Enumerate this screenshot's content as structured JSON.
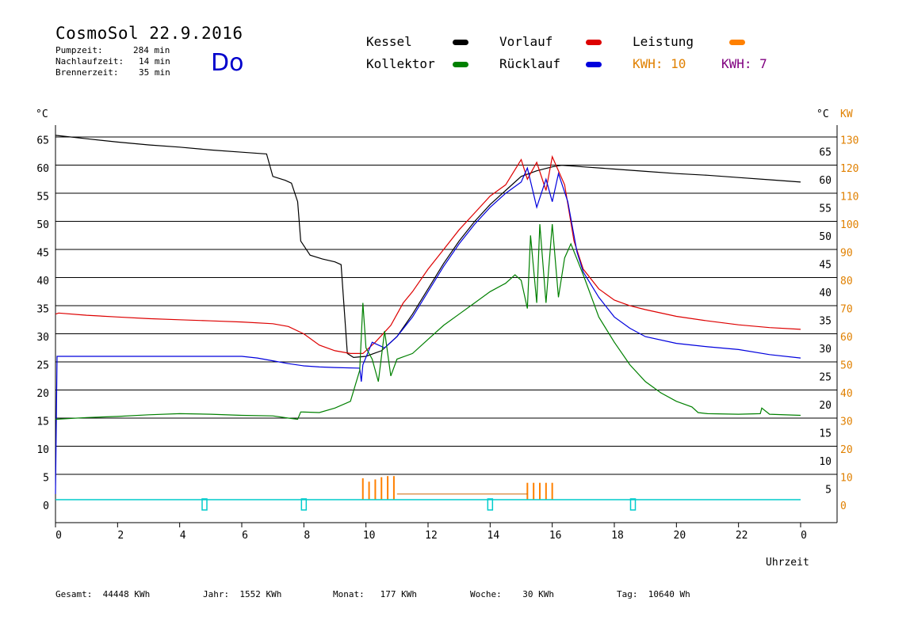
{
  "header": {
    "title": "CosmoSol 22.9.2016",
    "day": "Do",
    "info": [
      {
        "label": "Pumpzeit:",
        "value": "284 min"
      },
      {
        "label": "Nachlaufzeit:",
        "value": "14 min"
      },
      {
        "label": "Brennerzeit:",
        "value": "35 min"
      }
    ]
  },
  "legend": {
    "kessel": {
      "label": "Kessel",
      "color": "#000000"
    },
    "vorlauf": {
      "label": "Vorlauf",
      "color": "#dd0000"
    },
    "leistung": {
      "label": "Leistung",
      "color": "#ff8000"
    },
    "kollektor": {
      "label": "Kollektor",
      "color": "#008000"
    },
    "ruecklauf": {
      "label": "Rücklauf",
      "color": "#0000dd"
    },
    "kwh1": {
      "label": "KWH: 10",
      "color": "#e08000"
    },
    "kwh2": {
      "label": "KWH: 7",
      "color": "#800080"
    }
  },
  "footer": {
    "gesamt": "Gesamt:  44448 KWh",
    "jahr": "Jahr:  1552 KWh",
    "monat": "Monat:   177 KWh",
    "woche": "Woche:    30 KWh",
    "tag": "Tag:  10640 Wh"
  },
  "chart_data": {
    "type": "line",
    "xlabel": "Uhrzeit",
    "ylabel_left": "°C",
    "ylabel_right_1": "°C",
    "ylabel_right_2": "KW",
    "xlim": [
      0,
      24
    ],
    "ylim": [
      -4,
      65
    ],
    "x_ticks": [
      "0",
      "2",
      "4",
      "6",
      "8",
      "10",
      "12",
      "14",
      "16",
      "18",
      "20",
      "22",
      "0"
    ],
    "y_ticks_left": [
      "0",
      "5",
      "10",
      "15",
      "20",
      "25",
      "30",
      "35",
      "40",
      "45",
      "50",
      "55",
      "60",
      "65"
    ],
    "y_ticks_right_c": [
      "5",
      "10",
      "15",
      "20",
      "25",
      "30",
      "35",
      "40",
      "45",
      "50",
      "55",
      "60",
      "65"
    ],
    "y_ticks_right_kw": [
      "0",
      "10",
      "20",
      "30",
      "40",
      "50",
      "60",
      "70",
      "80",
      "90",
      "100",
      "110",
      "120",
      "130"
    ],
    "series": [
      {
        "name": "Kessel",
        "color": "#000000",
        "points": [
          [
            0,
            64.8
          ],
          [
            1,
            64.2
          ],
          [
            2,
            63.6
          ],
          [
            3,
            63.1
          ],
          [
            4,
            62.7
          ],
          [
            5,
            62.2
          ],
          [
            6,
            61.8
          ],
          [
            6.8,
            61.5
          ],
          [
            7,
            57.5
          ],
          [
            7.4,
            56.8
          ],
          [
            7.6,
            56.3
          ],
          [
            7.8,
            53
          ],
          [
            7.9,
            46
          ],
          [
            8.2,
            43.5
          ],
          [
            8.6,
            42.8
          ],
          [
            9,
            42.3
          ],
          [
            9.2,
            41.8
          ],
          [
            9.4,
            26
          ],
          [
            9.6,
            25.3
          ],
          [
            10,
            25.5
          ],
          [
            10.5,
            26.5
          ],
          [
            11,
            29
          ],
          [
            11.5,
            33
          ],
          [
            12,
            37.5
          ],
          [
            12.5,
            42
          ],
          [
            13,
            46
          ],
          [
            13.5,
            49.5
          ],
          [
            14,
            52.5
          ],
          [
            14.5,
            55
          ],
          [
            15,
            57.5
          ],
          [
            15.5,
            58.5
          ],
          [
            16,
            59.2
          ],
          [
            16.3,
            59.5
          ],
          [
            17,
            59.2
          ],
          [
            18,
            58.8
          ],
          [
            19,
            58.4
          ],
          [
            20,
            58
          ],
          [
            21,
            57.7
          ],
          [
            22,
            57.3
          ],
          [
            23,
            56.9
          ],
          [
            24,
            56.5
          ]
        ]
      },
      {
        "name": "Vorlauf",
        "color": "#dd0000",
        "points": [
          [
            0,
            33
          ],
          [
            0.1,
            33.2
          ],
          [
            1,
            32.8
          ],
          [
            2,
            32.5
          ],
          [
            3,
            32.2
          ],
          [
            4,
            32
          ],
          [
            5,
            31.8
          ],
          [
            6,
            31.6
          ],
          [
            7,
            31.3
          ],
          [
            7.5,
            30.8
          ],
          [
            8,
            29.5
          ],
          [
            8.5,
            27.5
          ],
          [
            9,
            26.5
          ],
          [
            9.5,
            26
          ],
          [
            9.9,
            26
          ],
          [
            10.3,
            28
          ],
          [
            10.8,
            31
          ],
          [
            11.2,
            35
          ],
          [
            11.5,
            37
          ],
          [
            12,
            41
          ],
          [
            12.5,
            44.5
          ],
          [
            13,
            48
          ],
          [
            13.5,
            51
          ],
          [
            14,
            54
          ],
          [
            14.5,
            56
          ],
          [
            15,
            60.5
          ],
          [
            15.2,
            57
          ],
          [
            15.5,
            60
          ],
          [
            15.8,
            55
          ],
          [
            16,
            61
          ],
          [
            16.4,
            56
          ],
          [
            16.7,
            46
          ],
          [
            17,
            41
          ],
          [
            17.5,
            37.5
          ],
          [
            18,
            35.5
          ],
          [
            18.5,
            34.5
          ],
          [
            19,
            33.8
          ],
          [
            20,
            32.6
          ],
          [
            21,
            31.8
          ],
          [
            22,
            31.1
          ],
          [
            23,
            30.6
          ],
          [
            24,
            30.3
          ]
        ]
      },
      {
        "name": "Rücklauf",
        "color": "#0000dd",
        "points": [
          [
            0,
            1
          ],
          [
            0.05,
            25.5
          ],
          [
            1,
            25.5
          ],
          [
            2,
            25.5
          ],
          [
            3,
            25.5
          ],
          [
            4,
            25.5
          ],
          [
            5,
            25.5
          ],
          [
            6,
            25.5
          ],
          [
            6.5,
            25.2
          ],
          [
            7,
            24.7
          ],
          [
            7.5,
            24.2
          ],
          [
            8,
            23.8
          ],
          [
            8.5,
            23.6
          ],
          [
            9,
            23.5
          ],
          [
            9.8,
            23.4
          ],
          [
            9.85,
            21
          ],
          [
            9.9,
            24
          ],
          [
            10.2,
            28
          ],
          [
            10.6,
            27
          ],
          [
            11,
            29
          ],
          [
            11.5,
            32.5
          ],
          [
            12,
            37
          ],
          [
            12.5,
            41.5
          ],
          [
            13,
            45.5
          ],
          [
            13.5,
            49
          ],
          [
            14,
            52
          ],
          [
            14.5,
            54.5
          ],
          [
            15,
            56.5
          ],
          [
            15.2,
            59
          ],
          [
            15.5,
            52
          ],
          [
            15.8,
            57
          ],
          [
            16,
            53
          ],
          [
            16.2,
            58
          ],
          [
            16.5,
            53
          ],
          [
            16.8,
            44
          ],
          [
            17,
            40.5
          ],
          [
            17.5,
            36
          ],
          [
            18,
            32.5
          ],
          [
            18.5,
            30.5
          ],
          [
            19,
            29
          ],
          [
            20,
            27.8
          ],
          [
            21,
            27.2
          ],
          [
            22,
            26.7
          ],
          [
            23,
            25.8
          ],
          [
            24,
            25.2
          ]
        ]
      },
      {
        "name": "Kollektor",
        "color": "#008000",
        "points": [
          [
            0,
            14.3
          ],
          [
            1,
            14.6
          ],
          [
            2,
            14.8
          ],
          [
            3,
            15.1
          ],
          [
            4,
            15.3
          ],
          [
            5,
            15.2
          ],
          [
            6,
            15
          ],
          [
            7,
            14.9
          ],
          [
            7.5,
            14.5
          ],
          [
            7.8,
            14.3
          ],
          [
            7.9,
            15.6
          ],
          [
            8.5,
            15.5
          ],
          [
            9,
            16.3
          ],
          [
            9.5,
            17.5
          ],
          [
            9.8,
            23
          ],
          [
            9.9,
            35
          ],
          [
            10,
            27
          ],
          [
            10.2,
            25
          ],
          [
            10.4,
            21
          ],
          [
            10.6,
            30
          ],
          [
            10.8,
            22
          ],
          [
            11,
            25
          ],
          [
            11.5,
            26
          ],
          [
            12,
            28.5
          ],
          [
            12.5,
            31
          ],
          [
            13,
            33
          ],
          [
            13.5,
            35
          ],
          [
            14,
            37
          ],
          [
            14.5,
            38.5
          ],
          [
            14.8,
            40
          ],
          [
            15,
            39
          ],
          [
            15.2,
            34
          ],
          [
            15.3,
            47
          ],
          [
            15.5,
            35
          ],
          [
            15.6,
            49
          ],
          [
            15.8,
            35
          ],
          [
            16,
            49
          ],
          [
            16.2,
            36
          ],
          [
            16.4,
            43
          ],
          [
            16.6,
            45.5
          ],
          [
            17,
            40
          ],
          [
            17.5,
            32.5
          ],
          [
            18,
            28
          ],
          [
            18.5,
            24
          ],
          [
            19,
            21
          ],
          [
            19.5,
            19
          ],
          [
            20,
            17.5
          ],
          [
            20.5,
            16.5
          ],
          [
            20.7,
            15.5
          ],
          [
            21,
            15.3
          ],
          [
            22,
            15.2
          ],
          [
            22.7,
            15.3
          ],
          [
            22.75,
            16.3
          ],
          [
            23,
            15.2
          ],
          [
            24,
            15
          ]
        ]
      }
    ],
    "markers": {
      "color": "#00cccc",
      "x": [
        4.8,
        8.0,
        14.0,
        18.6
      ]
    },
    "power": {
      "color": "#ff8000",
      "x": [
        9.9,
        10.1,
        10.3,
        10.5,
        10.7,
        10.9,
        15.2,
        15.4,
        15.6,
        15.8,
        16.0
      ],
      "y": [
        3.8,
        3.2,
        3.6,
        4.0,
        4.2,
        4.2,
        3.0,
        3.0,
        3.0,
        3.0,
        3.0
      ]
    }
  }
}
